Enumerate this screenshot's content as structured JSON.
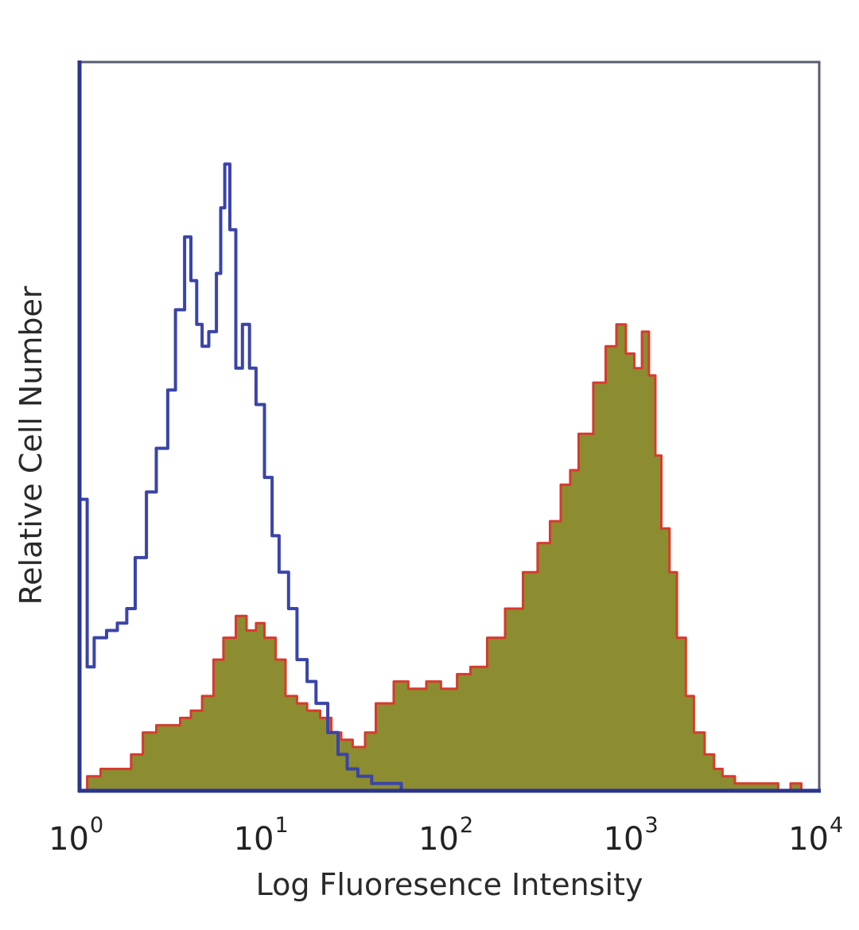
{
  "chart_data": {
    "type": "area",
    "title": "",
    "xlabel": "Log Fluoresence Intensity",
    "ylabel": "Relative Cell Number",
    "xscale": "log",
    "xlim": [
      1,
      10000
    ],
    "ylim": [
      0,
      100
    ],
    "grid": false,
    "legend": "none",
    "x_ticks": [
      {
        "value": 1,
        "base": "10",
        "exp": "0"
      },
      {
        "value": 10,
        "base": "10",
        "exp": "1"
      },
      {
        "value": 100,
        "base": "10",
        "exp": "2"
      },
      {
        "value": 1000,
        "base": "10",
        "exp": "3"
      },
      {
        "value": 10000,
        "base": "10",
        "exp": "4"
      }
    ],
    "series": [
      {
        "style": "outline",
        "color": "#3a44a8",
        "points": [
          [
            1.0,
            40
          ],
          [
            1.1,
            17
          ],
          [
            1.2,
            21
          ],
          [
            1.4,
            22
          ],
          [
            1.6,
            23
          ],
          [
            1.8,
            25
          ],
          [
            2.0,
            32
          ],
          [
            2.3,
            41
          ],
          [
            2.6,
            47
          ],
          [
            3.0,
            55
          ],
          [
            3.3,
            66
          ],
          [
            3.7,
            76
          ],
          [
            4.0,
            70
          ],
          [
            4.3,
            64
          ],
          [
            4.6,
            61
          ],
          [
            5.0,
            63
          ],
          [
            5.5,
            71
          ],
          [
            5.8,
            80
          ],
          [
            6.1,
            86
          ],
          [
            6.5,
            77
          ],
          [
            7.0,
            58
          ],
          [
            7.6,
            64
          ],
          [
            8.3,
            58
          ],
          [
            9.0,
            53
          ],
          [
            10.0,
            43
          ],
          [
            11.0,
            35
          ],
          [
            12.0,
            30
          ],
          [
            13.5,
            25
          ],
          [
            15.0,
            18
          ],
          [
            17.0,
            15
          ],
          [
            19.0,
            12
          ],
          [
            22.0,
            8
          ],
          [
            25.0,
            5
          ],
          [
            28.0,
            3
          ],
          [
            32.0,
            2
          ],
          [
            38.0,
            1
          ],
          [
            45.0,
            1
          ],
          [
            55.0,
            0
          ],
          [
            10000,
            0
          ]
        ]
      },
      {
        "style": "filled",
        "color": "#d83a2e",
        "fill": "#8c8c30",
        "points": [
          [
            1.0,
            0
          ],
          [
            1.1,
            2
          ],
          [
            1.3,
            3
          ],
          [
            1.6,
            3
          ],
          [
            1.9,
            5
          ],
          [
            2.2,
            8
          ],
          [
            2.6,
            9
          ],
          [
            3.0,
            9
          ],
          [
            3.5,
            10
          ],
          [
            4.0,
            11
          ],
          [
            4.6,
            13
          ],
          [
            5.3,
            18
          ],
          [
            6.0,
            21
          ],
          [
            7.0,
            24
          ],
          [
            8.0,
            22
          ],
          [
            9.0,
            23
          ],
          [
            10.0,
            21
          ],
          [
            11.5,
            18
          ],
          [
            13.0,
            13
          ],
          [
            15.0,
            12
          ],
          [
            17.0,
            11
          ],
          [
            20.0,
            10
          ],
          [
            23.0,
            8
          ],
          [
            26.0,
            7
          ],
          [
            30.0,
            6
          ],
          [
            35.0,
            8
          ],
          [
            40.0,
            12
          ],
          [
            50.0,
            15
          ],
          [
            60.0,
            14
          ],
          [
            75.0,
            15
          ],
          [
            90.0,
            14
          ],
          [
            110.0,
            16
          ],
          [
            130.0,
            17
          ],
          [
            160.0,
            21
          ],
          [
            200.0,
            25
          ],
          [
            250.0,
            30
          ],
          [
            300.0,
            34
          ],
          [
            350.0,
            37
          ],
          [
            400.0,
            42
          ],
          [
            450.0,
            44
          ],
          [
            500.0,
            49
          ],
          [
            600.0,
            56
          ],
          [
            700.0,
            61
          ],
          [
            800.0,
            64
          ],
          [
            900.0,
            60
          ],
          [
            1000.0,
            58
          ],
          [
            1100.0,
            63
          ],
          [
            1200.0,
            57
          ],
          [
            1300.0,
            46
          ],
          [
            1400.0,
            36
          ],
          [
            1550.0,
            30
          ],
          [
            1700.0,
            21
          ],
          [
            1900.0,
            13
          ],
          [
            2100.0,
            8
          ],
          [
            2400.0,
            5
          ],
          [
            2700.0,
            3
          ],
          [
            3000.0,
            2
          ],
          [
            3500.0,
            1
          ],
          [
            4500.0,
            1
          ],
          [
            6000.0,
            0
          ],
          [
            7000.0,
            1
          ],
          [
            8000.0,
            0
          ],
          [
            10000,
            0
          ]
        ]
      }
    ]
  }
}
